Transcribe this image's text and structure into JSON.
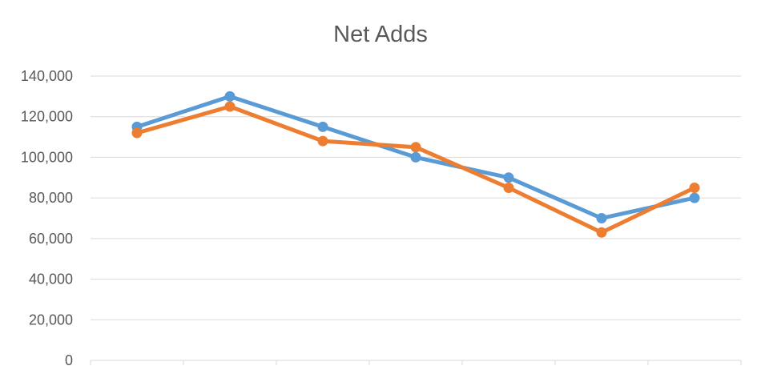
{
  "chart_data": {
    "type": "line",
    "title": "Net Adds",
    "xlabel": "",
    "ylabel": "",
    "ylim": [
      0,
      140000
    ],
    "ytick_labels": [
      "0",
      "20,000",
      "40,000",
      "60,000",
      "80,000",
      "100,000",
      "120,000",
      "140,000"
    ],
    "ytick_values": [
      0,
      20000,
      40000,
      60000,
      80000,
      100000,
      120000,
      140000
    ],
    "categories": [
      "",
      "",
      "",
      "",
      "",
      "",
      ""
    ],
    "grid": true,
    "legend": "none",
    "series": [
      {
        "color": "#5b9bd5",
        "values": [
          115000,
          130000,
          115000,
          100000,
          90000,
          70000,
          80000
        ]
      },
      {
        "color": "#ed7d31",
        "values": [
          112000,
          125000,
          108000,
          105000,
          85000,
          63000,
          85000
        ]
      }
    ]
  }
}
